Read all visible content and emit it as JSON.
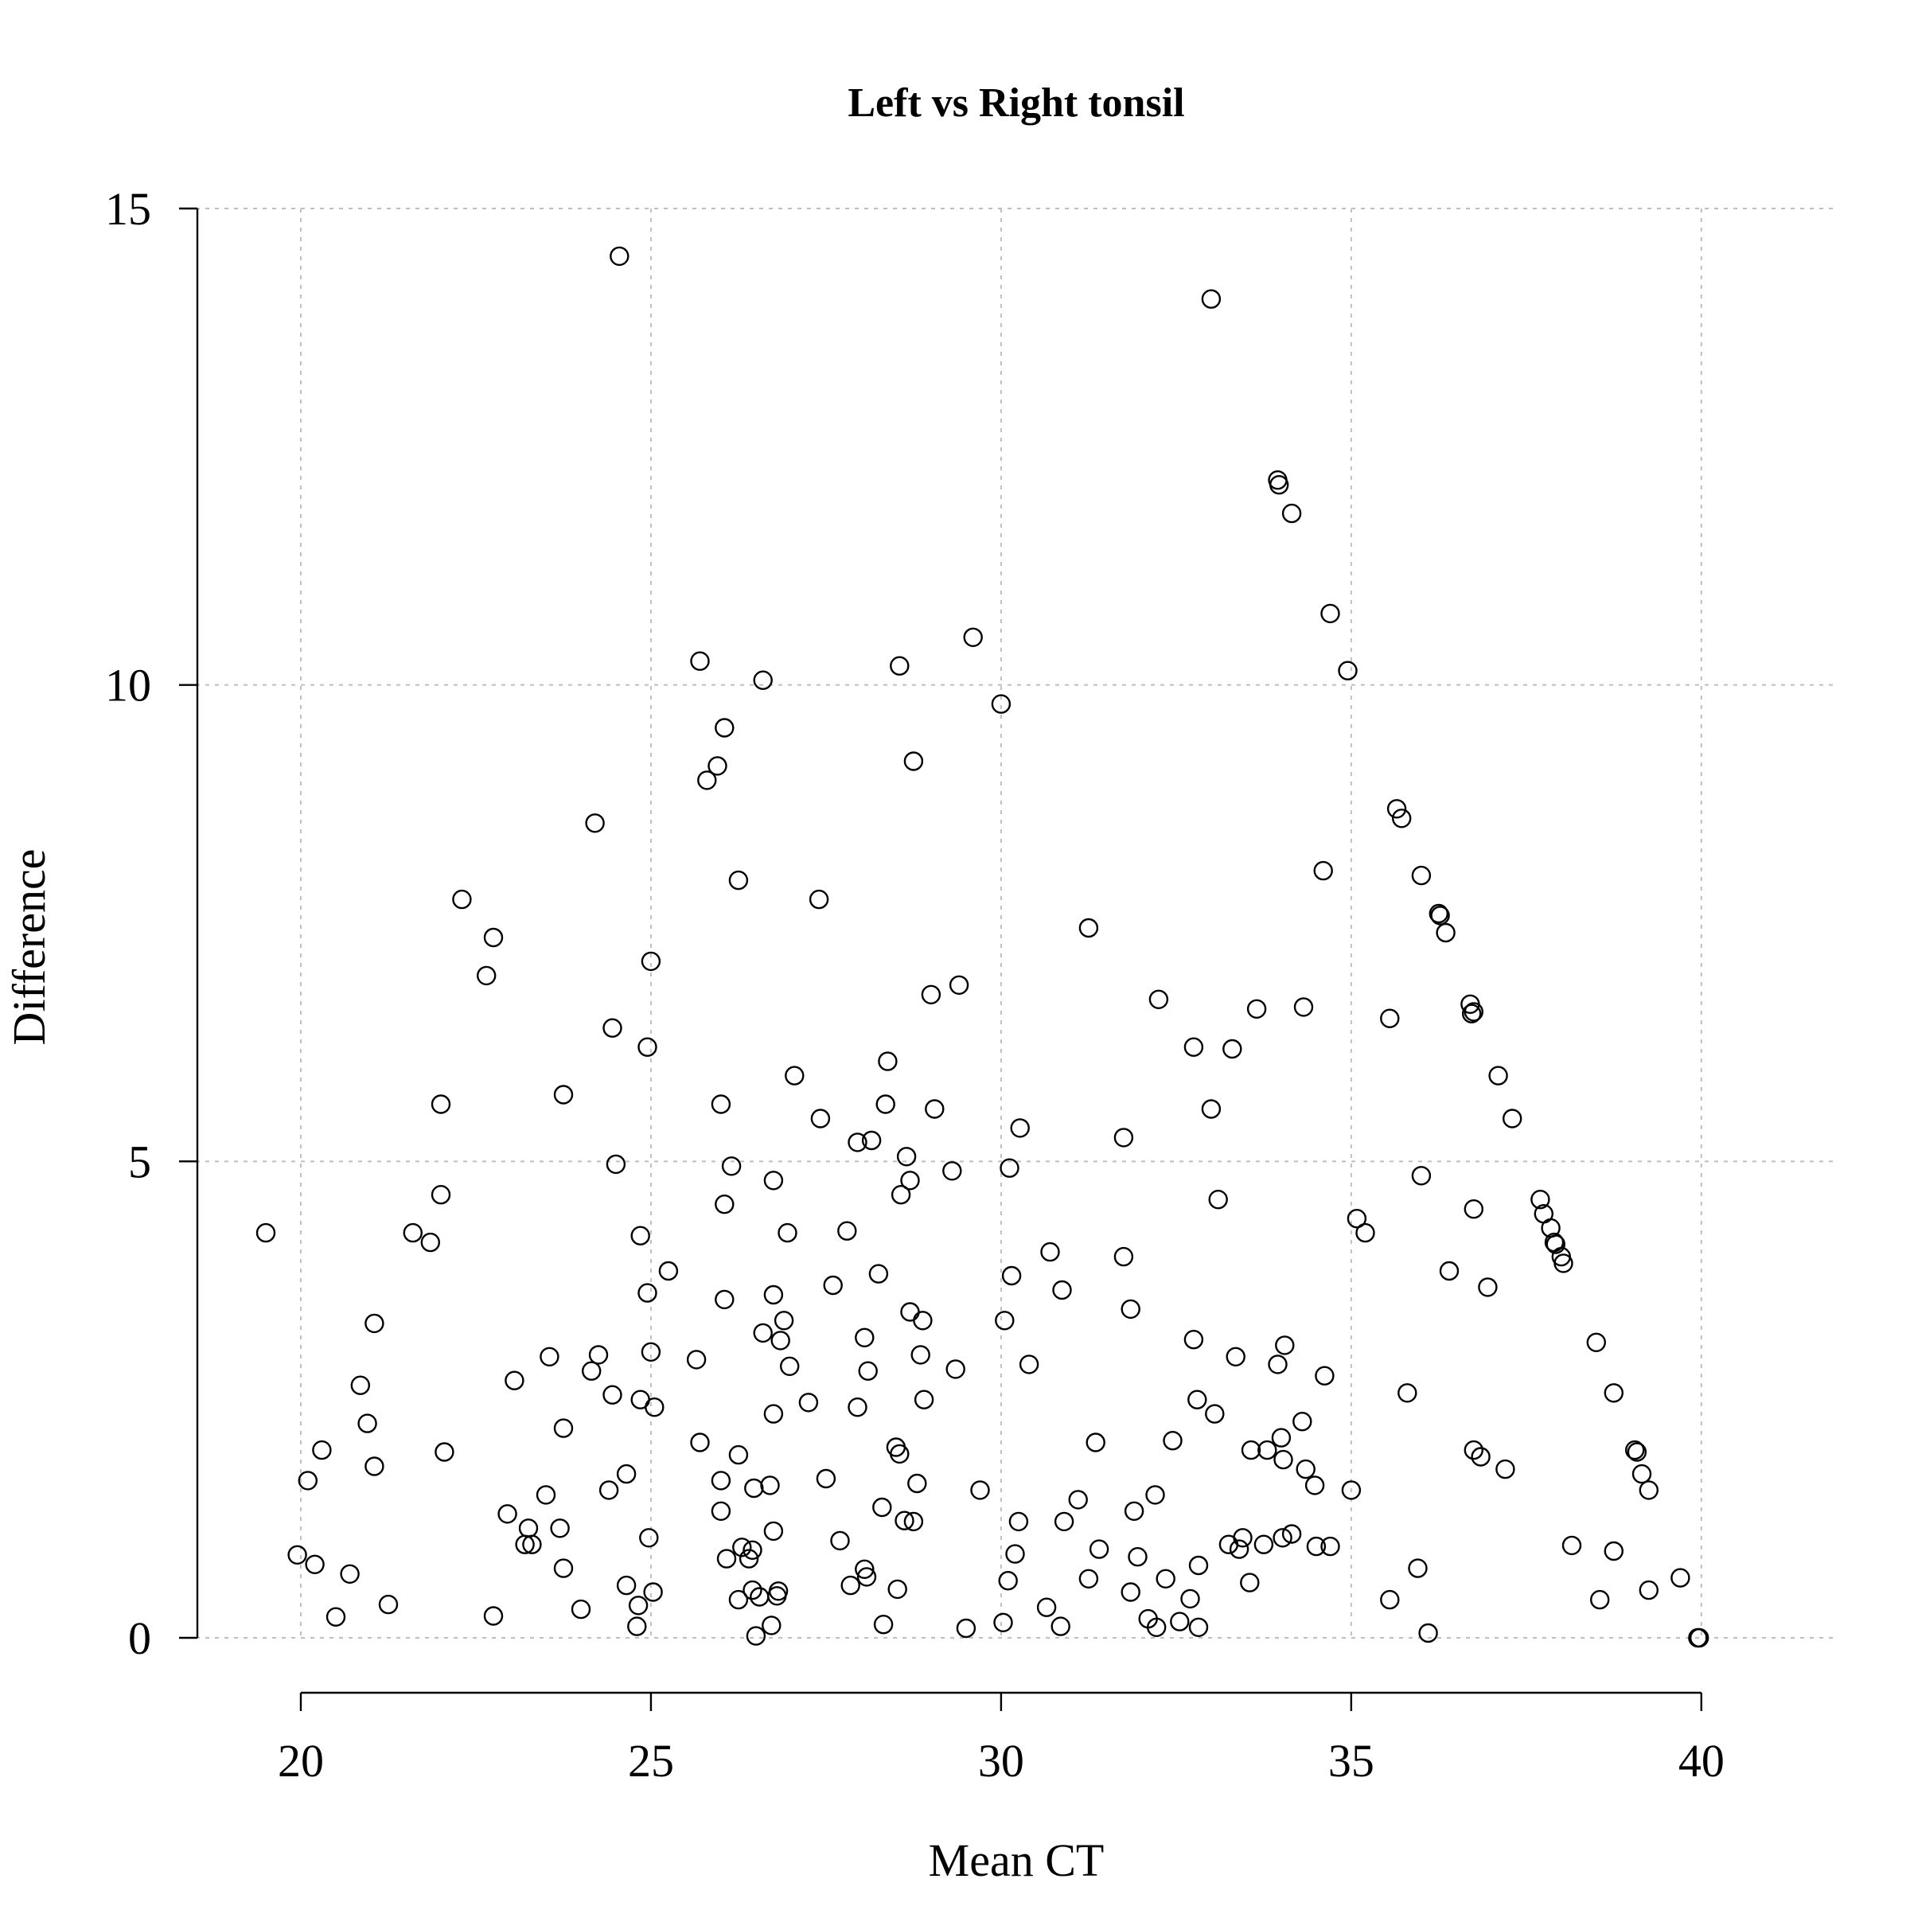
{
  "chart_data": {
    "type": "scatter",
    "title": "Left vs Right tonsil",
    "xlabel": "Mean CT",
    "ylabel": "Difference",
    "xlim": [
      18.5,
      41.9
    ],
    "ylim": [
      -0.5,
      15.0
    ],
    "x_ticks": [
      20,
      25,
      30,
      35,
      40
    ],
    "y_ticks": [
      0,
      5,
      10,
      15
    ],
    "x_tick_labels": [
      "20",
      "25",
      "30",
      "35",
      "40"
    ],
    "y_tick_labels": [
      "0",
      "5",
      "10",
      "15"
    ],
    "grid": true,
    "marker": "open-circle",
    "color": "#000000",
    "grid_color": "#bfbfbf",
    "points": [
      [
        19.5,
        4.25
      ],
      [
        19.95,
        0.87
      ],
      [
        20.1,
        1.65
      ],
      [
        20.2,
        0.77
      ],
      [
        20.3,
        1.97
      ],
      [
        20.5,
        0.22
      ],
      [
        20.7,
        0.67
      ],
      [
        20.85,
        2.65
      ],
      [
        20.95,
        2.25
      ],
      [
        21.05,
        1.8
      ],
      [
        21.05,
        3.3
      ],
      [
        21.25,
        0.35
      ],
      [
        21.6,
        4.25
      ],
      [
        21.85,
        4.15
      ],
      [
        22.0,
        5.6
      ],
      [
        22.0,
        4.65
      ],
      [
        22.05,
        1.95
      ],
      [
        22.3,
        7.75
      ],
      [
        22.65,
        6.95
      ],
      [
        22.75,
        7.35
      ],
      [
        22.75,
        0.23
      ],
      [
        22.95,
        1.3
      ],
      [
        23.05,
        2.7
      ],
      [
        23.2,
        0.98
      ],
      [
        23.25,
        1.15
      ],
      [
        23.3,
        0.98
      ],
      [
        23.5,
        1.5
      ],
      [
        23.55,
        2.95
      ],
      [
        23.7,
        1.15
      ],
      [
        23.75,
        5.7
      ],
      [
        23.75,
        2.2
      ],
      [
        23.75,
        0.73
      ],
      [
        24.0,
        0.3
      ],
      [
        24.15,
        2.8
      ],
      [
        24.2,
        8.55
      ],
      [
        24.25,
        2.97
      ],
      [
        24.4,
        1.55
      ],
      [
        24.45,
        6.4
      ],
      [
        24.45,
        2.55
      ],
      [
        24.5,
        4.97
      ],
      [
        24.55,
        14.5
      ],
      [
        24.65,
        0.55
      ],
      [
        24.65,
        1.72
      ],
      [
        24.8,
        0.12
      ],
      [
        24.82,
        0.34
      ],
      [
        24.85,
        2.5
      ],
      [
        24.85,
        4.22
      ],
      [
        24.95,
        6.2
      ],
      [
        24.95,
        3.62
      ],
      [
        24.97,
        1.05
      ],
      [
        25.0,
        7.1
      ],
      [
        25.0,
        3.0
      ],
      [
        25.03,
        0.48
      ],
      [
        25.05,
        2.42
      ],
      [
        25.25,
        3.85
      ],
      [
        25.65,
        2.92
      ],
      [
        25.7,
        10.25
      ],
      [
        25.7,
        2.05
      ],
      [
        25.8,
        9.0
      ],
      [
        25.95,
        9.15
      ],
      [
        26.0,
        5.6
      ],
      [
        26.0,
        1.65
      ],
      [
        26.0,
        1.33
      ],
      [
        26.05,
        9.55
      ],
      [
        26.05,
        3.55
      ],
      [
        26.05,
        4.55
      ],
      [
        26.08,
        0.83
      ],
      [
        26.15,
        4.95
      ],
      [
        26.25,
        7.95
      ],
      [
        26.25,
        1.92
      ],
      [
        26.25,
        0.4
      ],
      [
        26.3,
        0.95
      ],
      [
        26.4,
        0.83
      ],
      [
        26.45,
        0.92
      ],
      [
        26.45,
        0.5
      ],
      [
        26.47,
        1.57
      ],
      [
        26.5,
        0.02
      ],
      [
        26.55,
        0.43
      ],
      [
        26.6,
        10.05
      ],
      [
        26.6,
        3.2
      ],
      [
        26.7,
        1.6
      ],
      [
        26.72,
        0.13
      ],
      [
        26.75,
        4.8
      ],
      [
        26.75,
        3.6
      ],
      [
        26.75,
        1.12
      ],
      [
        26.75,
        2.35
      ],
      [
        26.8,
        0.44
      ],
      [
        26.82,
        0.49
      ],
      [
        26.85,
        3.12
      ],
      [
        26.9,
        3.33
      ],
      [
        26.95,
        4.25
      ],
      [
        26.98,
        2.85
      ],
      [
        27.05,
        5.9
      ],
      [
        27.25,
        2.47
      ],
      [
        27.4,
        7.75
      ],
      [
        27.42,
        5.45
      ],
      [
        27.5,
        1.67
      ],
      [
        27.6,
        3.7
      ],
      [
        27.7,
        1.02
      ],
      [
        27.85,
        0.55
      ],
      [
        27.8,
        4.27
      ],
      [
        27.95,
        5.2
      ],
      [
        27.95,
        2.42
      ],
      [
        28.05,
        3.15
      ],
      [
        28.05,
        0.72
      ],
      [
        28.08,
        0.64
      ],
      [
        28.1,
        2.8
      ],
      [
        28.15,
        5.22
      ],
      [
        28.25,
        3.82
      ],
      [
        28.3,
        1.37
      ],
      [
        28.32,
        0.14
      ],
      [
        28.35,
        5.6
      ],
      [
        28.38,
        6.05
      ],
      [
        28.5,
        2.0
      ],
      [
        28.52,
        0.51
      ],
      [
        28.55,
        1.93
      ],
      [
        28.55,
        10.2
      ],
      [
        28.57,
        4.65
      ],
      [
        28.62,
        1.23
      ],
      [
        28.65,
        5.05
      ],
      [
        28.7,
        3.42
      ],
      [
        28.7,
        4.8
      ],
      [
        28.75,
        1.22
      ],
      [
        28.75,
        9.2
      ],
      [
        28.8,
        1.62
      ],
      [
        28.85,
        2.97
      ],
      [
        28.88,
        3.33
      ],
      [
        28.9,
        2.5
      ],
      [
        29.0,
        6.75
      ],
      [
        29.05,
        5.55
      ],
      [
        29.3,
        4.9
      ],
      [
        29.35,
        2.82
      ],
      [
        29.4,
        6.85
      ],
      [
        29.5,
        0.1
      ],
      [
        29.6,
        10.5
      ],
      [
        29.7,
        1.55
      ],
      [
        30.0,
        9.8
      ],
      [
        30.03,
        0.16
      ],
      [
        30.05,
        3.33
      ],
      [
        30.1,
        0.6
      ],
      [
        30.12,
        4.93
      ],
      [
        30.15,
        3.8
      ],
      [
        30.2,
        0.88
      ],
      [
        30.25,
        1.22
      ],
      [
        30.27,
        5.35
      ],
      [
        30.4,
        2.87
      ],
      [
        30.65,
        0.32
      ],
      [
        30.7,
        4.05
      ],
      [
        30.85,
        0.12
      ],
      [
        30.87,
        3.65
      ],
      [
        30.9,
        1.22
      ],
      [
        31.1,
        1.45
      ],
      [
        31.25,
        0.62
      ],
      [
        31.25,
        7.45
      ],
      [
        31.35,
        2.05
      ],
      [
        31.4,
        0.93
      ],
      [
        31.75,
        5.25
      ],
      [
        31.75,
        4.0
      ],
      [
        31.85,
        0.48
      ],
      [
        31.85,
        3.45
      ],
      [
        31.9,
        1.33
      ],
      [
        31.95,
        0.85
      ],
      [
        32.1,
        0.2
      ],
      [
        32.2,
        1.5
      ],
      [
        32.22,
        0.11
      ],
      [
        32.25,
        6.7
      ],
      [
        32.35,
        0.62
      ],
      [
        32.45,
        2.07
      ],
      [
        32.55,
        0.17
      ],
      [
        32.7,
        0.41
      ],
      [
        32.75,
        6.2
      ],
      [
        32.75,
        3.13
      ],
      [
        32.8,
        2.5
      ],
      [
        32.82,
        0.76
      ],
      [
        32.82,
        0.11
      ],
      [
        33.0,
        14.05
      ],
      [
        33.0,
        5.55
      ],
      [
        33.05,
        2.35
      ],
      [
        33.1,
        4.6
      ],
      [
        33.25,
        0.98
      ],
      [
        33.3,
        6.18
      ],
      [
        33.35,
        2.95
      ],
      [
        33.4,
        0.93
      ],
      [
        33.45,
        1.05
      ],
      [
        33.55,
        0.58
      ],
      [
        33.57,
        1.97
      ],
      [
        33.65,
        6.6
      ],
      [
        33.75,
        0.98
      ],
      [
        33.8,
        1.97
      ],
      [
        33.95,
        12.15
      ],
      [
        33.95,
        2.87
      ],
      [
        33.97,
        12.1
      ],
      [
        34.0,
        2.1
      ],
      [
        34.02,
        1.05
      ],
      [
        34.03,
        1.87
      ],
      [
        34.05,
        3.07
      ],
      [
        34.15,
        11.8
      ],
      [
        34.15,
        1.09
      ],
      [
        34.3,
        2.27
      ],
      [
        34.32,
        6.62
      ],
      [
        34.35,
        1.77
      ],
      [
        34.5,
        0.96
      ],
      [
        34.48,
        1.6
      ],
      [
        34.6,
        8.05
      ],
      [
        34.62,
        2.75
      ],
      [
        34.7,
        10.75
      ],
      [
        34.7,
        0.96
      ],
      [
        34.95,
        10.15
      ],
      [
        35.0,
        1.55
      ],
      [
        35.08,
        4.4
      ],
      [
        35.2,
        4.25
      ],
      [
        35.55,
        6.5
      ],
      [
        35.55,
        0.4
      ],
      [
        35.65,
        8.7
      ],
      [
        35.72,
        8.6
      ],
      [
        35.8,
        2.57
      ],
      [
        35.95,
        0.73
      ],
      [
        36.0,
        8.0
      ],
      [
        36.0,
        4.85
      ],
      [
        36.1,
        0.05
      ],
      [
        36.25,
        7.6
      ],
      [
        36.27,
        7.58
      ],
      [
        36.35,
        7.4
      ],
      [
        36.4,
        3.85
      ],
      [
        36.7,
        6.65
      ],
      [
        36.72,
        6.55
      ],
      [
        36.75,
        6.57
      ],
      [
        36.75,
        4.5
      ],
      [
        36.75,
        1.97
      ],
      [
        36.85,
        1.9
      ],
      [
        36.95,
        3.68
      ],
      [
        37.1,
        5.9
      ],
      [
        37.2,
        1.77
      ],
      [
        37.3,
        5.45
      ],
      [
        37.7,
        4.6
      ],
      [
        37.75,
        4.45
      ],
      [
        37.85,
        4.3
      ],
      [
        37.9,
        4.15
      ],
      [
        37.92,
        4.13
      ],
      [
        38.0,
        4.0
      ],
      [
        38.03,
        3.93
      ],
      [
        38.15,
        0.97
      ],
      [
        38.5,
        3.1
      ],
      [
        38.55,
        0.4
      ],
      [
        38.75,
        0.91
      ],
      [
        38.75,
        2.57
      ],
      [
        39.05,
        1.97
      ],
      [
        39.08,
        1.95
      ],
      [
        39.15,
        1.72
      ],
      [
        39.25,
        1.55
      ],
      [
        39.25,
        0.5
      ],
      [
        39.7,
        0.63
      ],
      [
        39.95,
        0.0
      ],
      [
        39.97,
        0.0
      ]
    ]
  }
}
